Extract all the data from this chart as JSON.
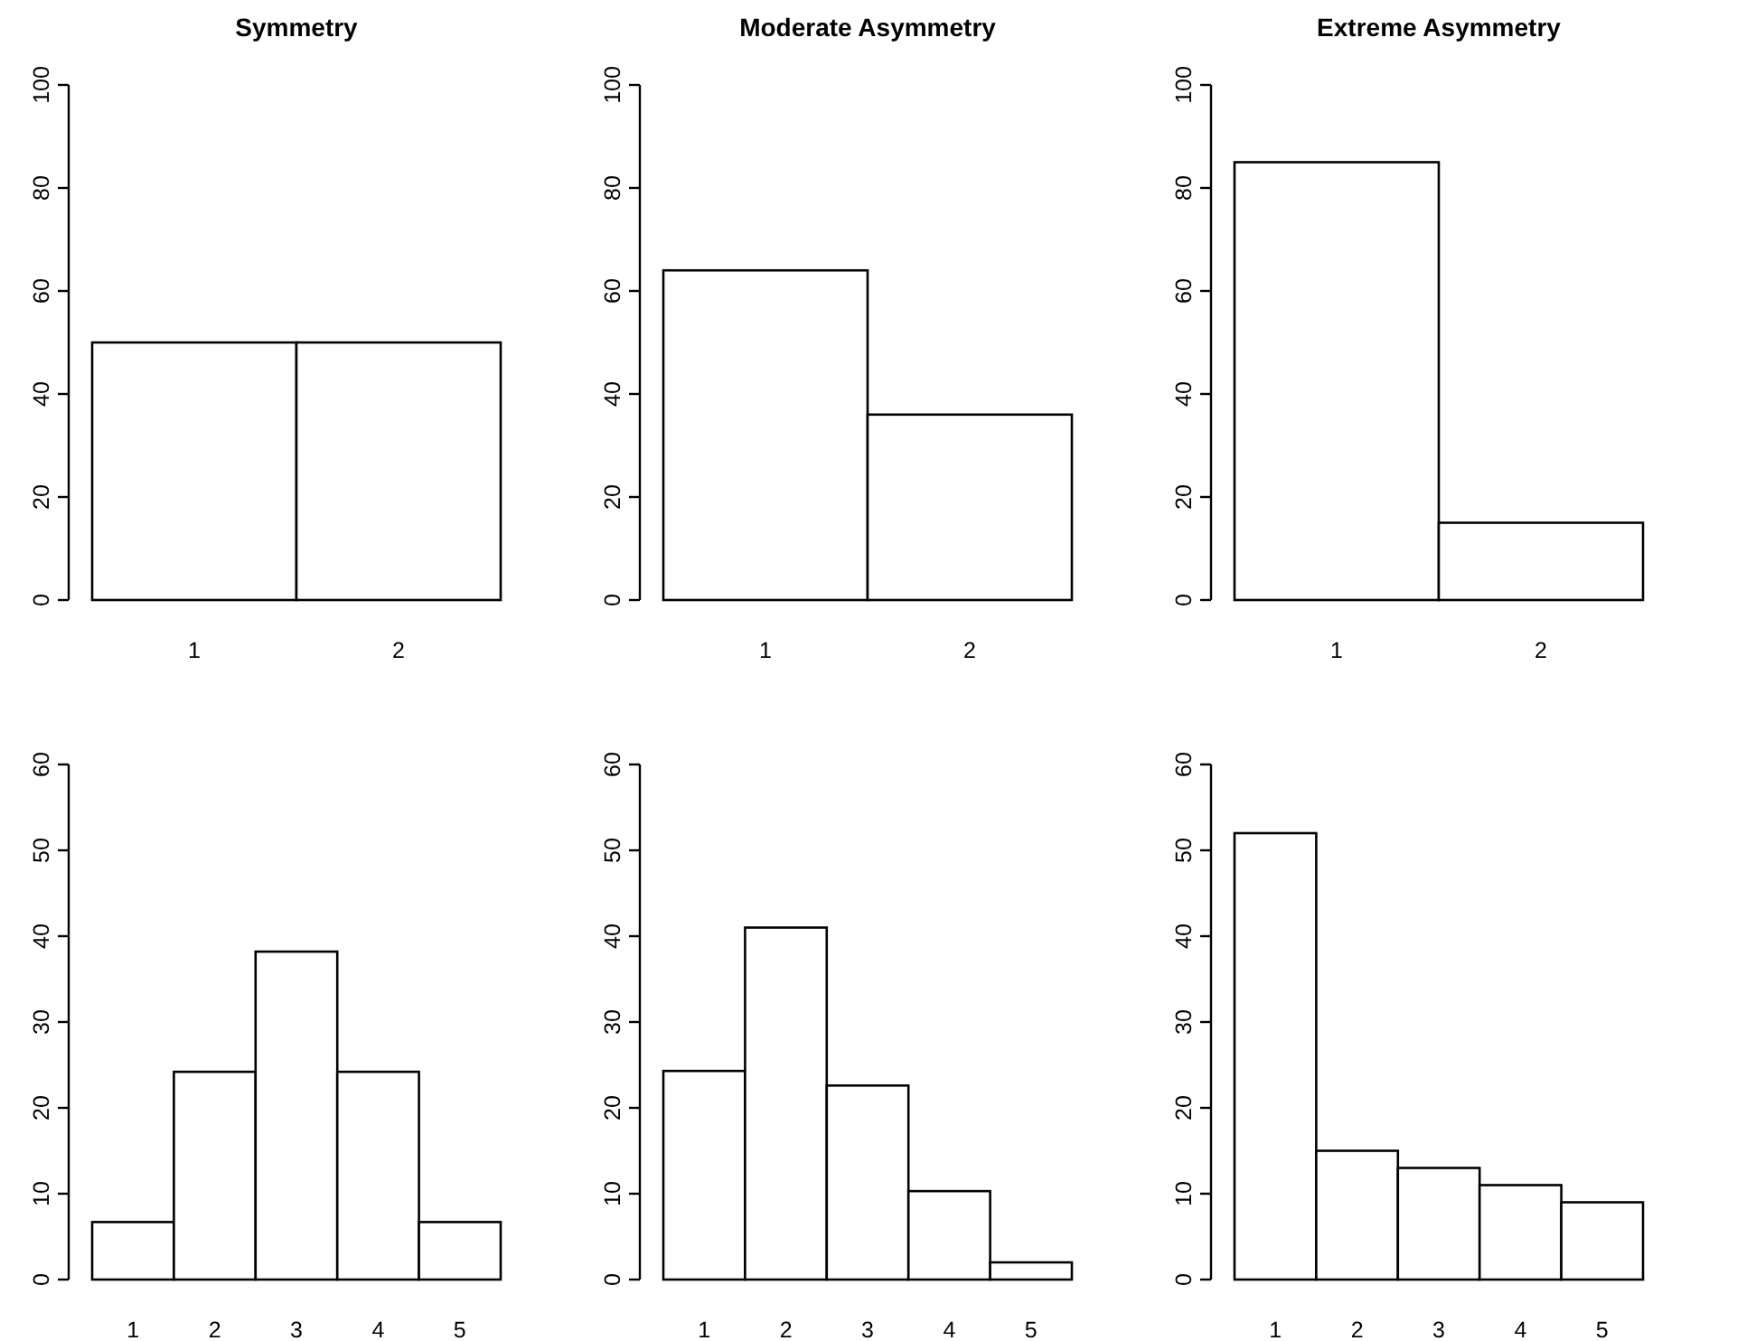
{
  "chart_data": [
    {
      "type": "bar",
      "title": "Symmetry",
      "categories": [
        "1",
        "2"
      ],
      "values": [
        50,
        50
      ],
      "color": "#ffffff",
      "ylim": [
        0,
        100
      ],
      "yticks": [
        0,
        20,
        40,
        60,
        80,
        100
      ]
    },
    {
      "type": "bar",
      "title": "Moderate Asymmetry",
      "categories": [
        "1",
        "2"
      ],
      "values": [
        64,
        36
      ],
      "color": "#ffffff",
      "ylim": [
        0,
        100
      ],
      "yticks": [
        0,
        20,
        40,
        60,
        80,
        100
      ]
    },
    {
      "type": "bar",
      "title": "Extreme Asymmetry",
      "categories": [
        "1",
        "2"
      ],
      "values": [
        85,
        15
      ],
      "color": "#ffffff",
      "ylim": [
        0,
        100
      ],
      "yticks": [
        0,
        20,
        40,
        60,
        80,
        100
      ]
    },
    {
      "type": "bar",
      "categories": [
        "1",
        "2",
        "3",
        "4",
        "5"
      ],
      "values": [
        6.7,
        24.2,
        38.2,
        24.2,
        6.7
      ],
      "color": "#ffffff",
      "ylim": [
        0,
        60
      ],
      "yticks": [
        0,
        10,
        20,
        30,
        40,
        50,
        60
      ]
    },
    {
      "type": "bar",
      "categories": [
        "1",
        "2",
        "3",
        "4",
        "5"
      ],
      "values": [
        24.3,
        41,
        22.6,
        10.3,
        2
      ],
      "color": "#ffffff",
      "ylim": [
        0,
        60
      ],
      "yticks": [
        0,
        10,
        20,
        30,
        40,
        50,
        60
      ]
    },
    {
      "type": "bar",
      "categories": [
        "1",
        "2",
        "3",
        "4",
        "5"
      ],
      "values": [
        52,
        15,
        13,
        11,
        9
      ],
      "color": "#ffffff",
      "ylim": [
        0,
        60
      ],
      "yticks": [
        0,
        10,
        20,
        30,
        40,
        50,
        60
      ]
    }
  ]
}
